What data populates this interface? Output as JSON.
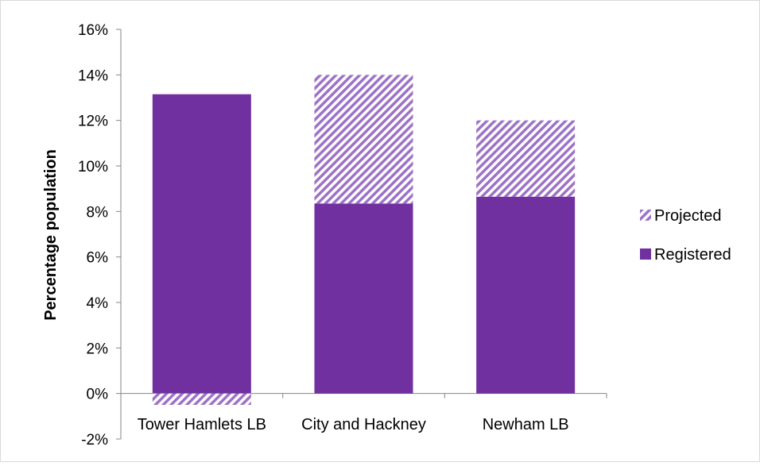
{
  "chart_data": {
    "type": "bar",
    "stacked": true,
    "title": "",
    "xlabel": "",
    "ylabel": "Percentage population",
    "categories": [
      "Tower Hamlets LB",
      "City and Hackney",
      "Newham LB"
    ],
    "series": [
      {
        "name": "Registered",
        "values": [
          13.15,
          8.35,
          8.65
        ],
        "color": "#7030A0",
        "pattern": "solid"
      },
      {
        "name": "Projected",
        "values": [
          -0.5,
          5.65,
          3.35
        ],
        "color": "#9D72C7",
        "pattern": "diagonal-hatch"
      }
    ],
    "ylim": [
      -2,
      16
    ],
    "ytick_labels": [
      "-2%",
      "0%",
      "2%",
      "4%",
      "6%",
      "8%",
      "10%",
      "12%",
      "14%",
      "16%"
    ],
    "gridlines": false,
    "legend_position": "right"
  }
}
